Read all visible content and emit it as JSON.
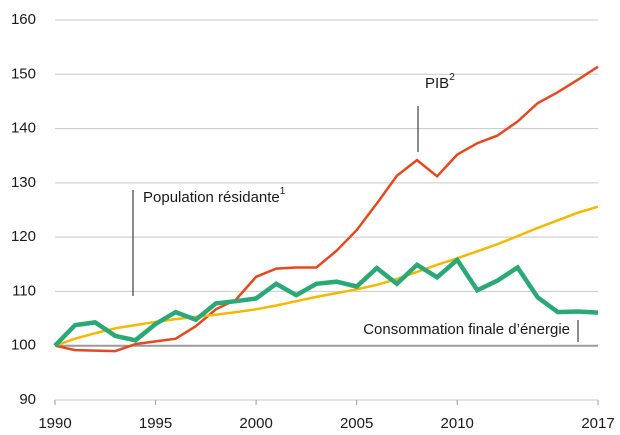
{
  "chart_data": {
    "type": "line",
    "x": [
      1990,
      1991,
      1992,
      1993,
      1994,
      1995,
      1996,
      1997,
      1998,
      1999,
      2000,
      2001,
      2002,
      2003,
      2004,
      2005,
      2006,
      2007,
      2008,
      2009,
      2010,
      2011,
      2012,
      2013,
      2014,
      2015,
      2016,
      2017
    ],
    "xlim": [
      1990,
      2017
    ],
    "xticks": [
      1990,
      1995,
      2000,
      2005,
      2010,
      2017
    ],
    "ylim": [
      90,
      160
    ],
    "yticks": [
      90,
      100,
      110,
      120,
      130,
      140,
      150,
      160
    ],
    "grid": true,
    "series": [
      {
        "name": "PIB",
        "note": "2",
        "color": "#e5481f",
        "values": [
          100,
          99.2,
          99.1,
          99.0,
          100.3,
          100.8,
          101.3,
          103.6,
          106.7,
          108.5,
          112.7,
          114.2,
          114.4,
          114.4,
          117.5,
          121.3,
          126.2,
          131.3,
          134.2,
          131.2,
          135.2,
          137.3,
          138.7,
          141.3,
          144.7,
          146.7,
          149.0,
          151.4
        ]
      },
      {
        "name": "Population résidante",
        "note": "1",
        "color": "#f5b800",
        "values": [
          100,
          101.3,
          102.3,
          103.2,
          103.8,
          104.4,
          104.9,
          105.3,
          105.7,
          106.2,
          106.7,
          107.4,
          108.2,
          109.0,
          109.7,
          110.4,
          111.2,
          112.3,
          113.6,
          114.9,
          116.1,
          117.4,
          118.7,
          120.2,
          121.7,
          123.1,
          124.5,
          125.6
        ]
      },
      {
        "name": "Consommation finale d’énergie",
        "color": "#2aa876",
        "values": [
          100,
          103.8,
          104.3,
          101.8,
          101.0,
          104.0,
          106.2,
          104.8,
          107.8,
          108.2,
          108.7,
          111.4,
          109.3,
          111.4,
          111.8,
          110.9,
          114.3,
          111.4,
          114.9,
          112.6,
          115.8,
          110.2,
          112.0,
          114.4,
          108.9,
          106.2,
          106.3,
          106.1
        ]
      }
    ]
  }
}
